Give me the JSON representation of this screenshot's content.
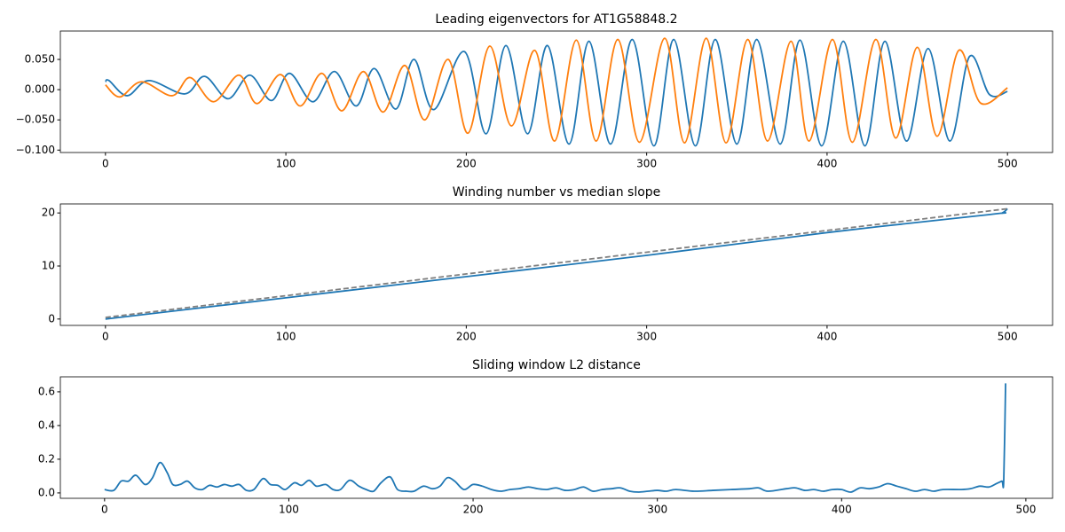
{
  "chart_data": [
    {
      "type": "line",
      "title": "Leading eigenvectors for AT1G58848.2",
      "series": [
        {
          "color": "#1f77b4",
          "x": [
            0,
            2,
            12,
            24,
            44,
            55,
            68,
            80,
            92,
            102,
            115,
            127,
            139,
            149,
            161,
            171,
            182,
            199,
            211,
            222,
            234,
            245,
            257,
            268,
            280,
            292,
            304,
            315,
            327,
            338,
            350,
            361,
            374,
            385,
            397,
            409,
            421,
            432,
            444,
            456,
            468,
            479,
            490,
            500
          ],
          "values": [
            0.013,
            0.015,
            -0.01,
            0.015,
            -0.007,
            0.022,
            -0.015,
            0.024,
            -0.018,
            0.027,
            -0.02,
            0.03,
            -0.027,
            0.035,
            -0.032,
            0.05,
            -0.033,
            0.063,
            -0.073,
            0.073,
            -0.073,
            0.073,
            -0.09,
            0.08,
            -0.09,
            0.083,
            -0.093,
            0.083,
            -0.093,
            0.083,
            -0.09,
            0.083,
            -0.09,
            0.082,
            -0.093,
            0.08,
            -0.093,
            0.08,
            -0.085,
            0.068,
            -0.085,
            0.055,
            -0.008,
            -0.003
          ]
        },
        {
          "color": "#ff7f0e",
          "x": [
            0,
            8,
            20,
            37,
            47,
            60,
            74,
            84,
            97,
            108,
            120,
            131,
            143,
            154,
            166,
            177,
            190,
            201,
            213,
            225,
            238,
            249,
            261,
            272,
            284,
            296,
            310,
            321,
            333,
            344,
            356,
            367,
            380,
            390,
            403,
            414,
            427,
            438,
            450,
            461,
            473,
            485,
            500
          ],
          "values": [
            0.008,
            -0.012,
            0.013,
            -0.01,
            0.02,
            -0.02,
            0.024,
            -0.023,
            0.025,
            -0.027,
            0.027,
            -0.035,
            0.03,
            -0.037,
            0.04,
            -0.05,
            0.05,
            -0.072,
            0.072,
            -0.06,
            0.065,
            -0.085,
            0.082,
            -0.085,
            0.083,
            -0.087,
            0.085,
            -0.088,
            0.085,
            -0.088,
            0.083,
            -0.085,
            0.08,
            -0.085,
            0.083,
            -0.087,
            0.083,
            -0.08,
            0.07,
            -0.077,
            0.065,
            -0.022,
            0.003
          ]
        }
      ],
      "xlim": [
        -25,
        525
      ],
      "ylim": [
        -0.104,
        0.097
      ],
      "xticks": [
        0,
        100,
        200,
        300,
        400,
        500
      ],
      "yticks": [
        {
          "value": -0.1,
          "label": "−0.100"
        },
        {
          "value": -0.05,
          "label": "−0.050"
        },
        {
          "value": 0,
          "label": "0.000"
        },
        {
          "value": 0.05,
          "label": "0.050"
        }
      ]
    },
    {
      "type": "line",
      "title": "Winding number vs median slope",
      "series": [
        {
          "color": "#1f77b4",
          "x": [
            0,
            100,
            200,
            300,
            400,
            490,
            497,
            500
          ],
          "values": [
            0,
            4,
            8,
            12,
            16.3,
            19.7,
            20,
            20.8
          ]
        },
        {
          "color": "#7f7f7f",
          "linestyle": "dashed",
          "x": [
            0,
            500
          ],
          "values": [
            0.3,
            20.8
          ]
        }
      ],
      "xlim": [
        -25,
        525
      ],
      "ylim": [
        -1.2,
        21.7
      ],
      "xticks": [
        0,
        100,
        200,
        300,
        400,
        500
      ],
      "yticks": [
        0,
        10,
        20
      ]
    },
    {
      "type": "line",
      "title": "Sliding window L2 distance",
      "series": [
        {
          "color": "#1f77b4",
          "x": [
            0,
            5,
            9,
            13,
            17,
            22,
            26,
            30,
            34,
            37,
            41,
            45,
            49,
            53,
            57,
            61,
            65,
            69,
            73,
            77,
            81,
            86,
            90,
            94,
            98,
            103,
            107,
            111,
            115,
            120,
            124,
            128,
            133,
            138,
            142,
            146,
            150,
            155,
            159,
            164,
            168,
            173,
            178,
            182,
            186,
            190,
            195,
            200,
            205,
            210,
            215,
            220,
            225,
            230,
            235,
            240,
            245,
            250,
            255,
            260,
            265,
            270,
            275,
            280,
            285,
            290,
            295,
            300,
            305,
            310,
            320,
            330,
            340,
            350,
            355,
            360,
            370,
            375,
            380,
            385,
            390,
            395,
            400,
            405,
            410,
            415,
            420,
            425,
            430,
            435,
            440,
            445,
            450,
            455,
            465,
            470,
            475,
            480,
            484,
            487,
            488,
            489
          ],
          "values": [
            0.02,
            0.015,
            0.07,
            0.07,
            0.105,
            0.05,
            0.09,
            0.18,
            0.12,
            0.05,
            0.05,
            0.07,
            0.03,
            0.02,
            0.045,
            0.035,
            0.05,
            0.04,
            0.05,
            0.015,
            0.02,
            0.085,
            0.05,
            0.045,
            0.02,
            0.06,
            0.045,
            0.075,
            0.04,
            0.05,
            0.02,
            0.02,
            0.075,
            0.04,
            0.02,
            0.01,
            0.06,
            0.095,
            0.02,
            0.01,
            0.01,
            0.04,
            0.025,
            0.04,
            0.09,
            0.07,
            0.02,
            0.05,
            0.04,
            0.02,
            0.01,
            0.02,
            0.025,
            0.035,
            0.025,
            0.02,
            0.03,
            0.015,
            0.02,
            0.035,
            0.01,
            0.02,
            0.025,
            0.03,
            0.01,
            0.005,
            0.01,
            0.015,
            0.01,
            0.02,
            0.01,
            0.015,
            0.02,
            0.025,
            0.03,
            0.01,
            0.025,
            0.03,
            0.015,
            0.02,
            0.01,
            0.02,
            0.02,
            0.005,
            0.03,
            0.025,
            0.035,
            0.055,
            0.04,
            0.025,
            0.01,
            0.02,
            0.01,
            0.02,
            0.02,
            0.025,
            0.04,
            0.035,
            0.055,
            0.07,
            0.075,
            0.65
          ]
        }
      ],
      "xlim": [
        -24,
        514.5
      ],
      "ylim": [
        -0.032,
        0.689
      ],
      "xticks": [
        0,
        100,
        200,
        300,
        400,
        500
      ],
      "yticks": [
        {
          "value": 0,
          "label": "0.0"
        },
        0.2,
        0.4,
        0.6
      ]
    }
  ]
}
